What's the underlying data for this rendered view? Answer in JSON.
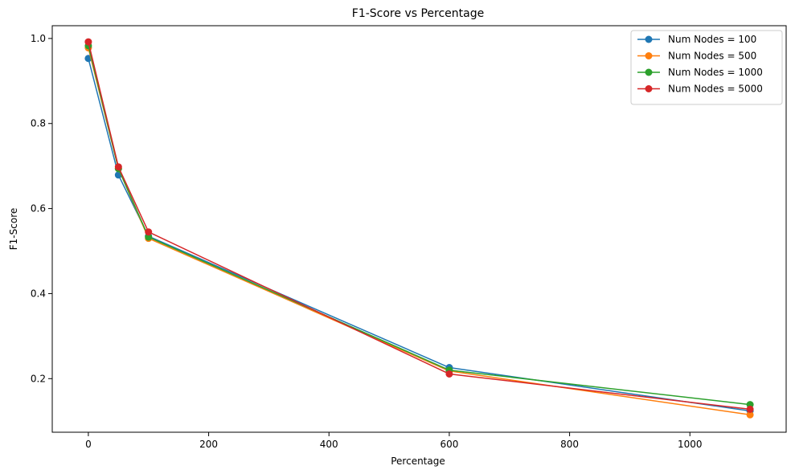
{
  "chart_data": {
    "type": "line",
    "title": "F1-Score vs Percentage",
    "xlabel": "Percentage",
    "ylabel": "F1-Score",
    "xlim": [
      -60,
      1160
    ],
    "ylim": [
      0.074,
      1.03
    ],
    "xticks": [
      0,
      200,
      400,
      600,
      800,
      1000
    ],
    "yticks": [
      0.2,
      0.4,
      0.6,
      0.8,
      1.0
    ],
    "ytick_labels": [
      "0.2",
      "0.4",
      "0.6",
      "0.8",
      "1.0"
    ],
    "grid": false,
    "legend_position": "top-right",
    "x": [
      0,
      50,
      100,
      600,
      1100
    ],
    "series": [
      {
        "name": "Num Nodes = 100",
        "color": "#1f77b4",
        "values": [
          0.953,
          0.679,
          0.535,
          0.226,
          0.124
        ]
      },
      {
        "name": "Num Nodes = 500",
        "color": "#ff7f0e",
        "values": [
          0.978,
          0.694,
          0.53,
          0.218,
          0.115
        ]
      },
      {
        "name": "Num Nodes = 1000",
        "color": "#2ca02c",
        "values": [
          0.983,
          0.694,
          0.533,
          0.22,
          0.139
        ]
      },
      {
        "name": "Num Nodes = 5000",
        "color": "#d62728",
        "values": [
          0.992,
          0.698,
          0.545,
          0.211,
          0.128
        ]
      }
    ]
  }
}
